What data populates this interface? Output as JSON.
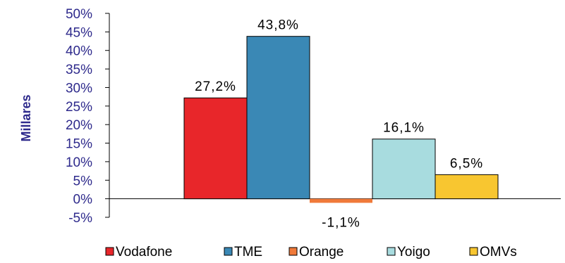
{
  "chart_data": {
    "type": "bar",
    "ylabel": "Millares",
    "ylim": [
      -5,
      50
    ],
    "yticks": [
      50,
      45,
      40,
      35,
      30,
      25,
      20,
      15,
      10,
      5,
      0,
      -5
    ],
    "ytick_labels": [
      "50%",
      "45%",
      "40%",
      "35%",
      "30%",
      "25%",
      "20%",
      "15%",
      "10%",
      "5%",
      "0%",
      "-5%"
    ],
    "grid": false,
    "legend_position": "bottom",
    "series": [
      {
        "name": "Vodafone",
        "value": 27.2,
        "label": "27,2%",
        "color": "#e8262a"
      },
      {
        "name": "TME",
        "value": 43.8,
        "label": "43,8%",
        "color": "#3a88b5"
      },
      {
        "name": "Orange",
        "value": -1.1,
        "label": "-1,1%",
        "color": "#f07a3a"
      },
      {
        "name": "Yoigo",
        "value": 16.1,
        "label": "16,1%",
        "color": "#a8dcdf"
      },
      {
        "name": "OMVs",
        "value": 6.5,
        "label": "6,5%",
        "color": "#f8c630"
      }
    ]
  }
}
